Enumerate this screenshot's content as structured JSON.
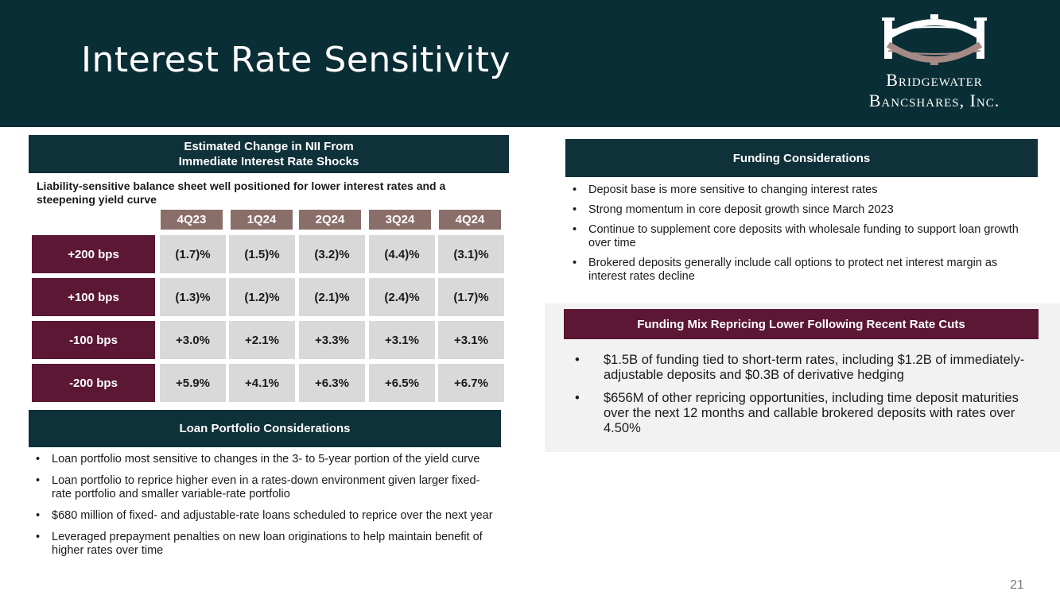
{
  "title": "Interest Rate Sensitivity",
  "logo": {
    "line1": "Bridgewater",
    "line2": "Bancshares, Inc."
  },
  "nii_panel": {
    "header_line1": "Estimated Change in NII From",
    "header_line2": "Immediate Interest Rate Shocks",
    "intro": "Liability-sensitive balance sheet well positioned for lower interest rates and a steepening yield curve",
    "quarters": [
      "4Q23",
      "1Q24",
      "2Q24",
      "3Q24",
      "4Q24"
    ],
    "rows": [
      {
        "label": "+200 bps",
        "values": [
          "(1.7)%",
          "(1.5)%",
          "(3.2)%",
          "(4.4)%",
          "(3.1)%"
        ]
      },
      {
        "label": "+100 bps",
        "values": [
          "(1.3)%",
          "(1.2)%",
          "(2.1)%",
          "(2.4)%",
          "(1.7)%"
        ]
      },
      {
        "label": "-100 bps",
        "values": [
          "+3.0%",
          "+2.1%",
          "+3.3%",
          "+3.1%",
          "+3.1%"
        ]
      },
      {
        "label": "-200 bps",
        "values": [
          "+5.9%",
          "+4.1%",
          "+6.3%",
          "+6.5%",
          "+6.7%"
        ]
      }
    ]
  },
  "loan_panel": {
    "header": "Loan Portfolio Considerations",
    "bullets": [
      "Loan portfolio most sensitive to changes in the 3- to 5-year portion of the yield curve",
      "Loan portfolio to reprice higher even in a rates-down environment given larger fixed-rate portfolio and smaller variable-rate portfolio",
      "$680 million of fixed- and adjustable-rate loans scheduled to reprice over the next year",
      "Leveraged prepayment penalties on new loan originations to help maintain benefit of higher rates over time"
    ]
  },
  "funding_panel": {
    "header": "Funding Considerations",
    "bullets": [
      "Deposit base is more sensitive to changing interest rates",
      "Strong momentum in core deposit growth since March 2023",
      "Continue to supplement core deposits with wholesale funding to support loan growth over time",
      "Brokered deposits generally include call options to protect net interest margin as interest rates decline"
    ]
  },
  "mix_panel": {
    "header": "Funding Mix Repricing Lower Following Recent Rate Cuts",
    "bullets": [
      "$1.5B of funding tied to short-term rates, including $1.2B of immediately-adjustable deposits and $0.3B of derivative hedging",
      "$656M of other repricing opportunities, including time deposit maturities over the next 12 months and callable brokered deposits with rates over 4.50%"
    ]
  },
  "bullet_char": "•",
  "page_number": "21",
  "colors": {
    "header_bg": "#0a2e36",
    "teal": "#0f3139",
    "plum": "#5b1734",
    "quarter_bg": "#8a6e6a",
    "cell_bg": "#d9d9d9",
    "mix_bg": "#f2f2f2",
    "logo_accent": "#a68a86"
  }
}
